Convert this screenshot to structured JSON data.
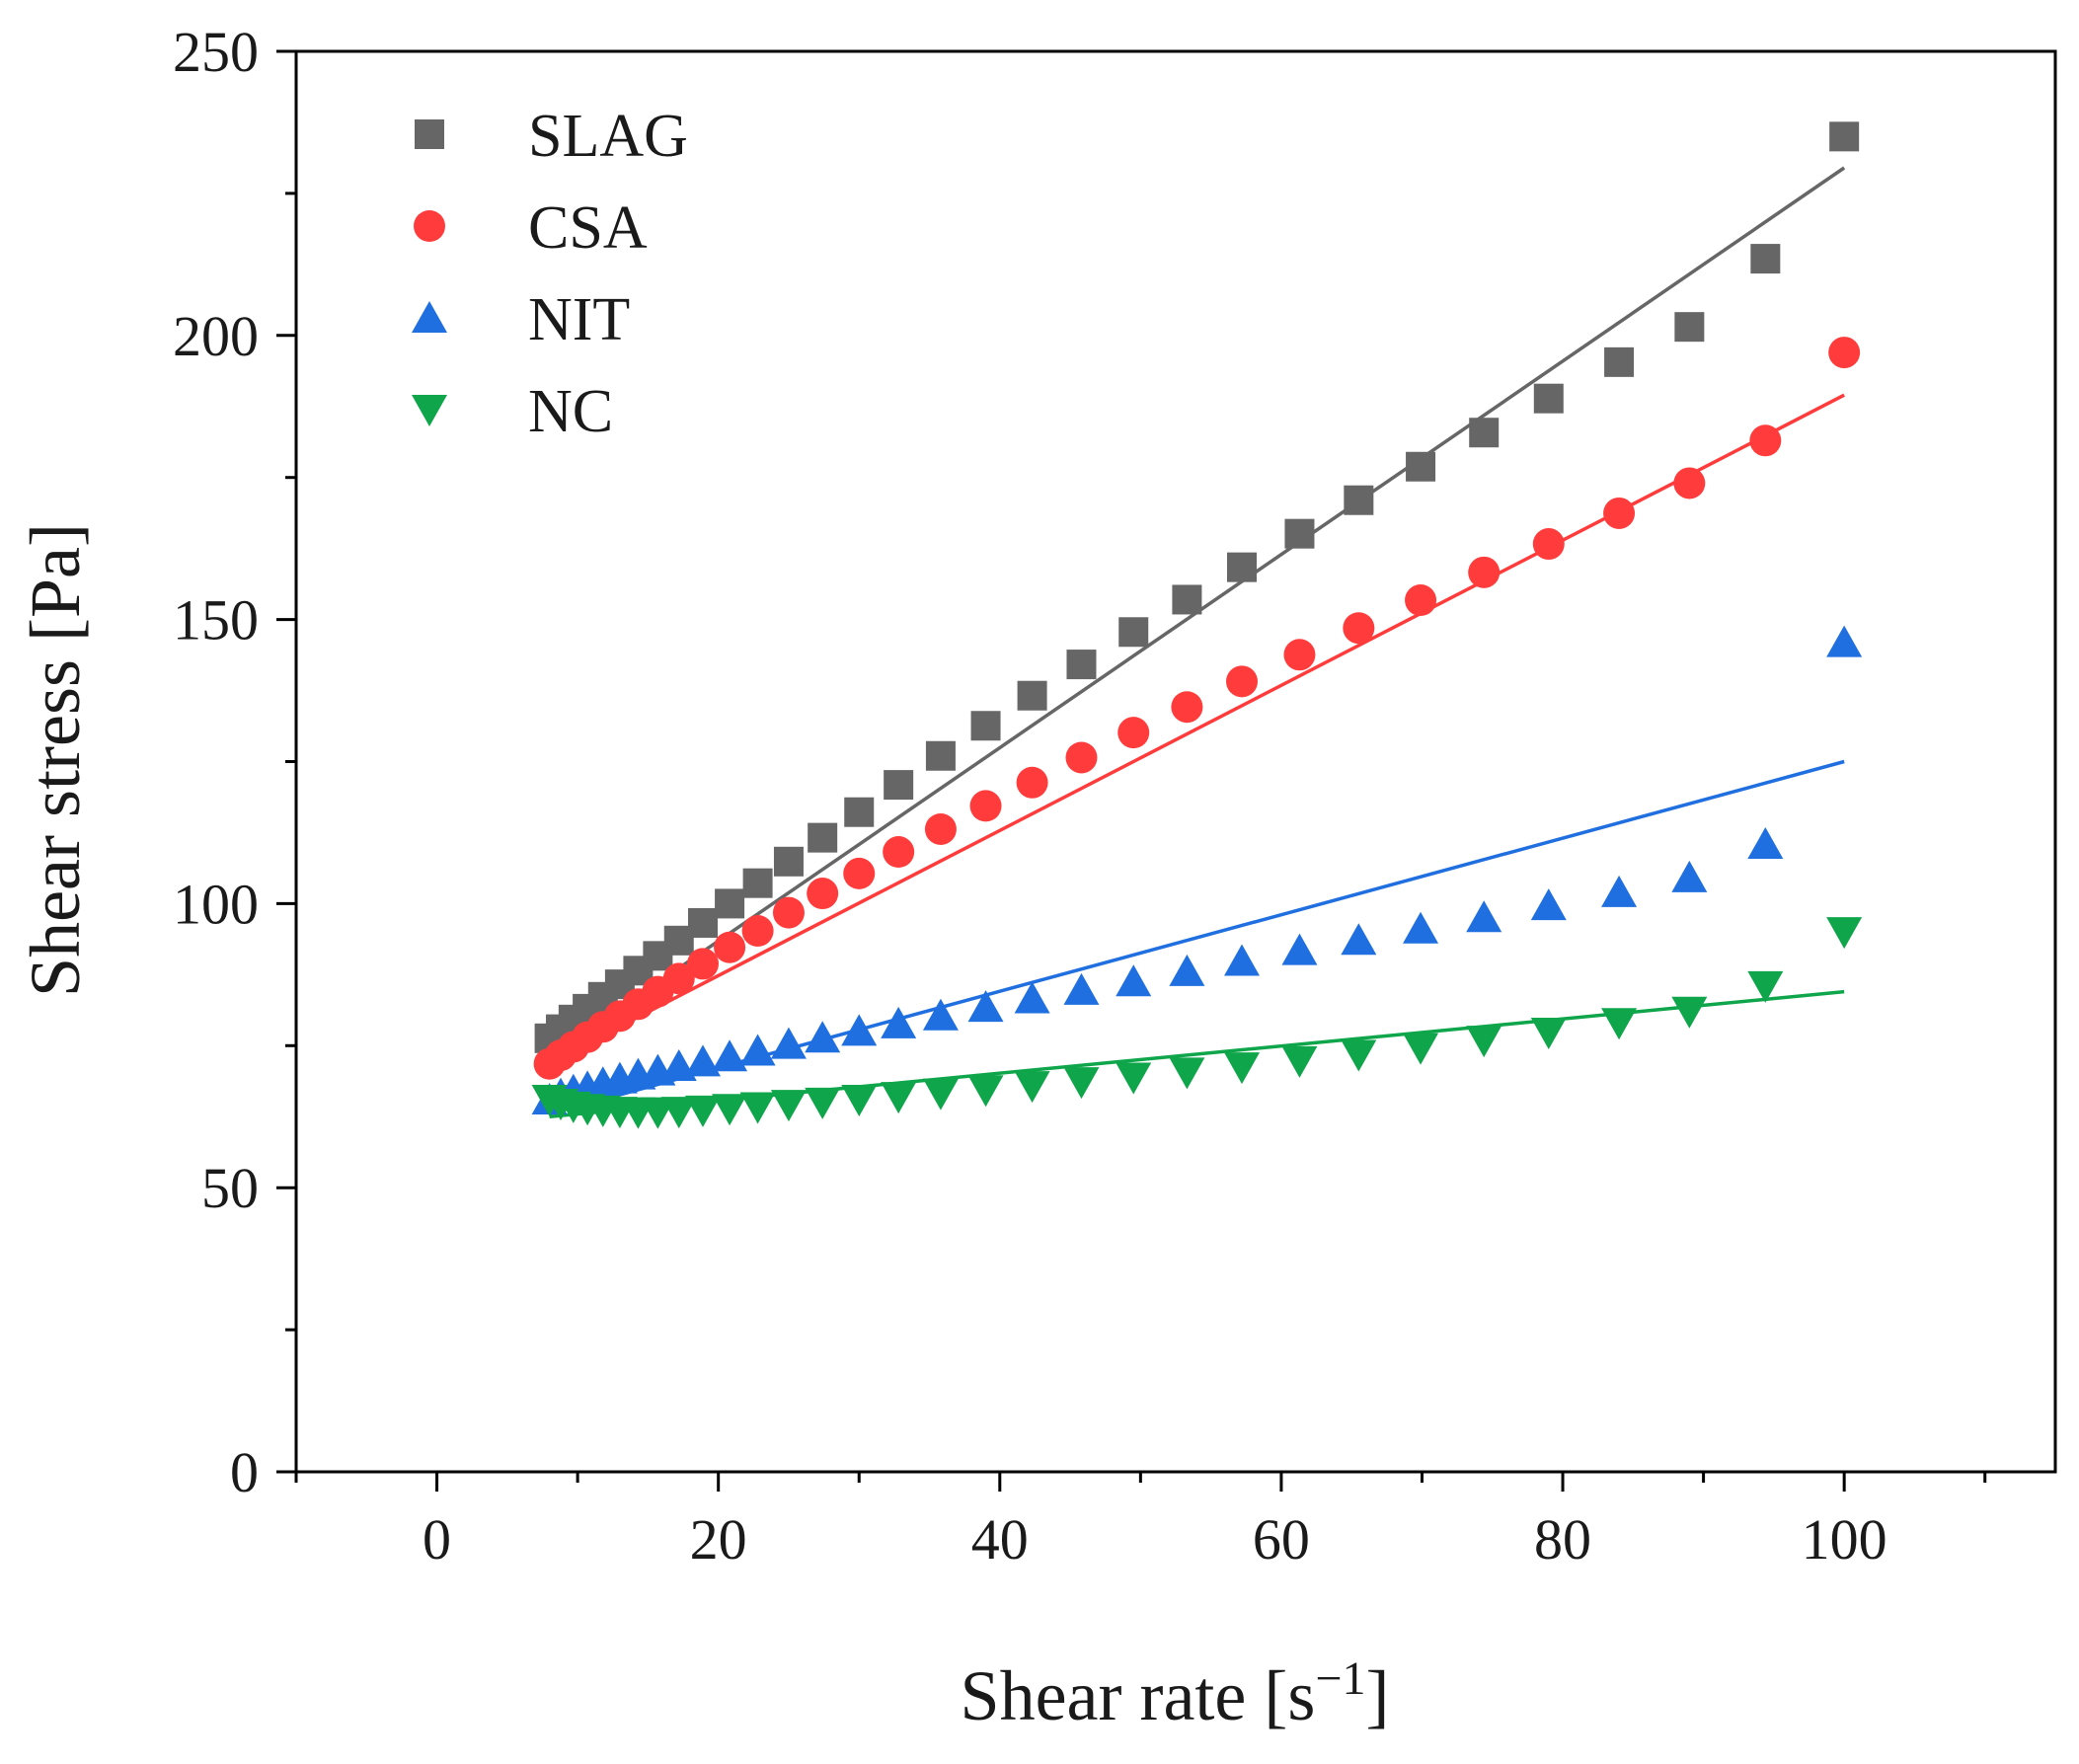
{
  "chart_data": {
    "type": "scatter",
    "title": "",
    "xlabel": "Shear rate [s",
    "xlabel_sup": "−1",
    "xlabel_end": "]",
    "ylabel": "Shear stress [Pa]",
    "xlim": [
      -10,
      115
    ],
    "ylim": [
      0,
      250
    ],
    "x_ticks": [
      0,
      20,
      40,
      60,
      80,
      100
    ],
    "x_tick_labels": [
      "0",
      "20",
      "40",
      "60",
      "80",
      "100"
    ],
    "y_ticks": [
      0,
      50,
      100,
      150,
      200,
      250
    ],
    "y_tick_labels": [
      "0",
      "50",
      "100",
      "150",
      "200",
      "250"
    ],
    "legend_position": "top-left",
    "x": [
      8,
      8.8,
      9.7,
      10.7,
      11.8,
      13,
      14.3,
      15.7,
      17.2,
      18.9,
      20.8,
      22.8,
      25,
      27.4,
      30,
      32.8,
      35.8,
      39,
      42.3,
      45.8,
      49.5,
      53.3,
      57.2,
      61.3,
      65.5,
      69.9,
      74.4,
      79,
      84,
      89,
      94.4,
      100
    ],
    "series": [
      {
        "name": "SLAG",
        "color": "#666666",
        "marker": "square",
        "values": [
          76.3,
          77.9,
          79.6,
          81.5,
          83.6,
          85.8,
          88.2,
          90.8,
          93.5,
          96.6,
          100,
          103.6,
          107.4,
          111.6,
          116.1,
          120.9,
          126,
          131.3,
          136.6,
          142.1,
          147.8,
          153.5,
          159.2,
          165.1,
          171,
          176.9,
          182.9,
          188.9,
          195.3,
          201.5,
          213.5,
          235
        ],
        "fit": {
          "x": [
            8,
            100
          ],
          "y": [
            73,
            229.5
          ]
        }
      },
      {
        "name": "CSA",
        "color": "#ff3b3b",
        "marker": "circle",
        "values": [
          71.8,
          73.3,
          74.8,
          76.5,
          78.3,
          80.2,
          82.3,
          84.5,
          86.8,
          89.4,
          92.3,
          95.2,
          98.4,
          101.8,
          105.3,
          109.1,
          113.1,
          117.2,
          121.3,
          125.7,
          130.1,
          134.6,
          139.1,
          143.8,
          148.5,
          153.4,
          158.3,
          163.3,
          168.7,
          174,
          181.5,
          197
        ],
        "fit": {
          "x": [
            8,
            100
          ],
          "y": [
            72,
            189.5
          ]
        }
      },
      {
        "name": "NIT",
        "color": "#1f6fe0",
        "marker": "triangle-up",
        "values": [
          65.5,
          66.4,
          67.1,
          67.7,
          68.4,
          69.2,
          69.9,
          70.6,
          71.4,
          72.2,
          73.1,
          74.1,
          75.3,
          76.4,
          77.6,
          78.9,
          80.3,
          81.8,
          83.3,
          84.8,
          86.3,
          88.1,
          89.9,
          91.8,
          93.6,
          95.6,
          97.6,
          99.7,
          102,
          104.6,
          110.5,
          146
        ],
        "fit": {
          "x": [
            8,
            100
          ],
          "y": [
            63,
            125
          ]
        }
      },
      {
        "name": "NC",
        "color": "#0fa54a",
        "marker": "triangle-down",
        "values": [
          65.5,
          64.8,
          64.3,
          63.9,
          63.6,
          63.4,
          63.3,
          63.3,
          63.4,
          63.6,
          63.9,
          64.2,
          64.6,
          65,
          65.5,
          66,
          66.6,
          67.2,
          67.9,
          68.6,
          69.4,
          70.3,
          71.2,
          72.3,
          73.4,
          74.6,
          75.9,
          77.3,
          79,
          81,
          85.5,
          95
        ],
        "fit": {
          "x": [
            8,
            100
          ],
          "y": [
            62.5,
            84.5
          ]
        }
      }
    ]
  }
}
